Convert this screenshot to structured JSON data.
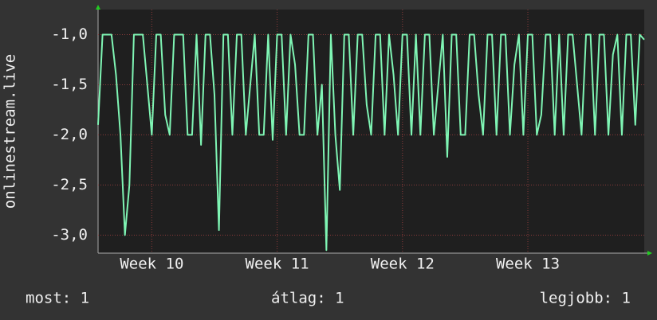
{
  "chart_data": {
    "type": "line",
    "y_label": "onlinestream.live",
    "x": [
      0,
      0.25,
      0.5,
      0.75,
      1,
      1.25,
      1.5,
      1.75,
      2,
      2.25,
      2.5,
      2.75,
      3,
      3.25,
      3.5,
      3.75,
      4,
      4.25,
      4.5,
      4.75,
      5,
      5.25,
      5.5,
      5.75,
      6,
      6.25,
      6.5,
      6.75,
      7,
      7.25,
      7.5,
      7.75,
      8,
      8.25,
      8.5,
      8.75,
      9,
      9.25,
      9.5,
      9.75,
      10,
      10.25,
      10.5,
      10.75,
      11,
      11.25,
      11.5,
      11.75,
      12,
      12.25,
      12.5,
      12.75,
      13,
      13.25,
      13.5,
      13.75,
      14,
      14.25,
      14.5,
      14.75,
      15,
      15.25,
      15.5,
      15.75,
      16,
      16.25,
      16.5,
      16.75,
      17,
      17.25,
      17.5,
      17.75,
      18,
      18.25,
      18.5,
      18.75,
      19,
      19.25,
      19.5,
      19.75,
      20,
      20.25,
      20.5,
      20.75,
      21,
      21.25,
      21.5,
      21.75,
      22,
      22.25,
      22.5,
      22.75,
      23,
      23.25,
      23.5,
      23.75,
      24,
      24.25,
      24.5,
      24.75,
      25,
      25.25,
      25.5,
      25.75,
      26,
      26.25,
      26.5,
      26.75,
      27,
      27.25,
      27.5,
      27.75,
      28,
      28.25,
      28.5,
      28.75,
      29,
      29.25,
      29.5,
      29.75,
      30,
      30.25,
      30.5
    ],
    "series": [
      {
        "name": "onlinestream.live",
        "color": "#7ff5b4",
        "values": [
          -1.9,
          -1,
          -1,
          -1,
          -1.4,
          -2,
          -3,
          -2.5,
          -1,
          -1,
          -1,
          -1.5,
          -2,
          -1,
          -1,
          -1.8,
          -2,
          -1,
          -1,
          -1,
          -2,
          -2,
          -1,
          -2.1,
          -1,
          -1,
          -1.6,
          -2.95,
          -1,
          -1,
          -2,
          -1,
          -1,
          -2,
          -1.5,
          -1,
          -2,
          -2,
          -1,
          -2.05,
          -1,
          -1,
          -2,
          -1,
          -1.3,
          -2,
          -2,
          -1,
          -1,
          -2,
          -1.5,
          -3.15,
          -1,
          -2,
          -2.55,
          -1,
          -1,
          -2,
          -1,
          -1,
          -1.7,
          -2,
          -1,
          -1,
          -2,
          -1,
          -1.4,
          -2,
          -1,
          -1,
          -2,
          -1,
          -2,
          -1,
          -1,
          -2,
          -1.5,
          -1,
          -2.22,
          -1,
          -1,
          -2,
          -2,
          -1,
          -1,
          -1.6,
          -2,
          -1,
          -1,
          -2,
          -1,
          -1,
          -2,
          -1.3,
          -1,
          -2,
          -1,
          -1,
          -2,
          -1.8,
          -1,
          -1,
          -2,
          -1,
          -2,
          -1,
          -1,
          -1.5,
          -2,
          -1,
          -1,
          -2,
          -1,
          -1,
          -2,
          -1.2,
          -1,
          -2,
          -1,
          -1,
          -1.9,
          -1,
          -1.05
        ]
      }
    ],
    "xlim": [
      0,
      30.5
    ],
    "xticks": [
      {
        "value": 3,
        "label": "Week 10"
      },
      {
        "value": 10,
        "label": "Week 11"
      },
      {
        "value": 17,
        "label": "Week 12"
      },
      {
        "value": 24,
        "label": "Week 13"
      }
    ],
    "ylim": [
      -3.18,
      -0.75
    ],
    "yticks": [
      {
        "value": -1,
        "label": "-1,0"
      },
      {
        "value": -1.5,
        "label": "-1,5"
      },
      {
        "value": -2,
        "label": "-2,0"
      },
      {
        "value": -2.5,
        "label": "-2,5"
      },
      {
        "value": -3,
        "label": "-3,0"
      }
    ],
    "grid": true,
    "stats": [
      "most: 1",
      "átlag: 1",
      "legjobb: 1"
    ]
  }
}
